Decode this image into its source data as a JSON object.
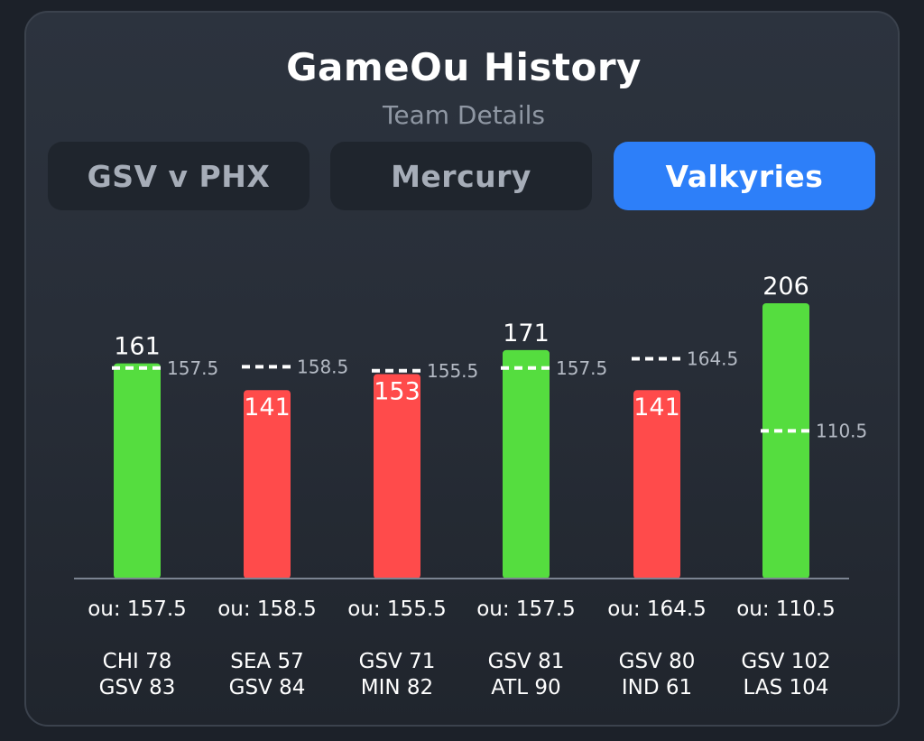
{
  "header": {
    "title": "GameOu History",
    "subtitle": "Team Details"
  },
  "tabs": [
    {
      "label": "GSV v PHX",
      "active": false
    },
    {
      "label": "Mercury",
      "active": false
    },
    {
      "label": "Valkyries",
      "active": true
    }
  ],
  "colors": {
    "over": "#55dd3f",
    "under": "#ff4b4b",
    "active_tab": "#2d7ff9",
    "line_marker": "#ffffff"
  },
  "chart_data": {
    "type": "bar",
    "categories": [
      "CHI 78 / GSV 83",
      "SEA 57 / GSV 84",
      "GSV 71 / MIN 82",
      "GSV 81 / ATL 90",
      "GSV 80 / IND 61",
      "GSV 102 / LAS 104"
    ],
    "values": [
      161,
      141,
      153,
      171,
      141,
      206
    ],
    "ou_lines": [
      157.5,
      158.5,
      155.5,
      157.5,
      164.5,
      110.5
    ],
    "ou_labels": [
      "ou: 157.5",
      "ou: 158.5",
      "ou: 155.5",
      "ou: 157.5",
      "ou: 164.5",
      "ou: 110.5"
    ],
    "games": [
      [
        "CHI 78",
        "GSV 83"
      ],
      [
        "SEA 57",
        "GSV 84"
      ],
      [
        "GSV 71",
        "MIN 82"
      ],
      [
        "GSV 81",
        "ATL 90"
      ],
      [
        "GSV 80",
        "IND 61"
      ],
      [
        "GSV 102",
        "LAS 104"
      ]
    ],
    "results": [
      "over",
      "under",
      "under",
      "over",
      "under",
      "over"
    ]
  }
}
